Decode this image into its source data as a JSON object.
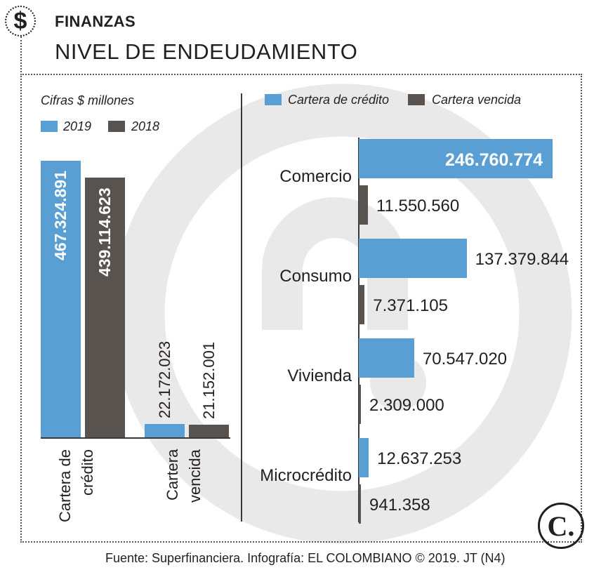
{
  "header": {
    "dollar_symbol": "$",
    "kicker": "FINANZAS",
    "headline": "NIVEL DE ENDEUDAMIENTO"
  },
  "colors": {
    "blue": "#5a9fd4",
    "dark": "#59534f",
    "watermark": "#e9e9e9"
  },
  "chart_data": [
    {
      "type": "bar",
      "note": "Cifras  $ millones",
      "legend": [
        {
          "label": "2019",
          "color": "#5a9fd4"
        },
        {
          "label": "2018",
          "color": "#59534f"
        }
      ],
      "categories": [
        "Cartera de\ncrédito",
        "Cartera\nvencida"
      ],
      "category_lines": [
        [
          "Cartera de",
          "crédito"
        ],
        [
          "Cartera",
          "vencida"
        ]
      ],
      "series": [
        {
          "name": "2019",
          "values": [
            467324891,
            22172023
          ],
          "labels": [
            "467.324.891",
            "22.172.023"
          ]
        },
        {
          "name": "2018",
          "values": [
            439114623,
            21152001
          ],
          "labels": [
            "439.114.623",
            "21.152.001"
          ]
        }
      ],
      "ylim": [
        0,
        467324891
      ]
    },
    {
      "type": "bar",
      "orientation": "horizontal",
      "legend": [
        {
          "label": "Cartera de crédito",
          "color": "#5a9fd4"
        },
        {
          "label": "Cartera vencida",
          "color": "#59534f"
        }
      ],
      "categories": [
        "Comercio",
        "Consumo",
        "Vivienda",
        "Microcrédito"
      ],
      "series": [
        {
          "name": "Cartera de crédito",
          "values": [
            246760774,
            137379844,
            70547020,
            12637253
          ],
          "labels": [
            "246.760.774",
            "137.379.844",
            "70.547.020",
            "12.637.253"
          ]
        },
        {
          "name": "Cartera vencida",
          "values": [
            11550560,
            7371105,
            2309000,
            941358
          ],
          "labels": [
            "11.550.560",
            "7.371.105",
            "2.309.000",
            "941.358"
          ]
        }
      ],
      "xlim": [
        0,
        246760774
      ]
    }
  ],
  "footer": {
    "source": "Fuente: Superfinanciera. Infografía: EL COLOMBIANO © 2019. JT (N4)",
    "logo_letter": "C."
  }
}
